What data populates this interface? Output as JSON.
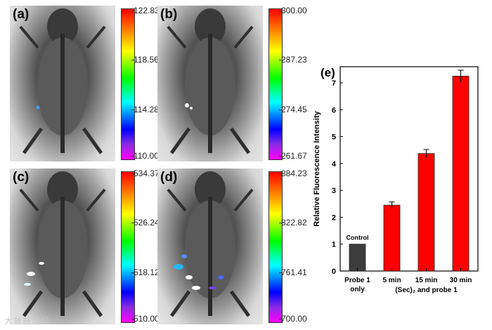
{
  "panels": [
    {
      "label": "(a)",
      "scale_ticks": [
        "122.83",
        "118.56",
        "114.28",
        "110.00"
      ]
    },
    {
      "label": "(b)",
      "scale_ticks": [
        "300.00",
        "287.23",
        "274.45",
        "261.67"
      ]
    },
    {
      "label": "(c)",
      "scale_ticks": [
        "534.37",
        "526.24",
        "518.12",
        "510.00"
      ]
    },
    {
      "label": "(d)",
      "scale_ticks": [
        "884.23",
        "822.82",
        "761.41",
        "700.00"
      ]
    }
  ],
  "colors": {
    "control_bar": "#3c3c3c",
    "treated_bar": "#ff0000",
    "error_bar": "#000000"
  },
  "chart_data": {
    "type": "bar",
    "title": "(e)",
    "ylabel": "Relative Fluorescence Intensity",
    "ylim": [
      0,
      7.6
    ],
    "yticks": [
      0,
      1,
      2,
      3,
      4,
      5,
      6,
      7
    ],
    "categories": [
      "Probe 1 only",
      "5 min",
      "15 min",
      "30 min"
    ],
    "category_lines": [
      [
        "Probe 1",
        "only"
      ],
      [
        "5 min"
      ],
      [
        "15 min"
      ],
      [
        "30 min"
      ]
    ],
    "values": [
      1.0,
      2.45,
      4.37,
      7.25
    ],
    "errors": [
      0.0,
      0.12,
      0.15,
      0.22
    ],
    "bar_labels": [
      "Control",
      "",
      "",
      ""
    ],
    "group_label": "(Sec)₂ and probe 1"
  },
  "watermark": "大数据论坛"
}
